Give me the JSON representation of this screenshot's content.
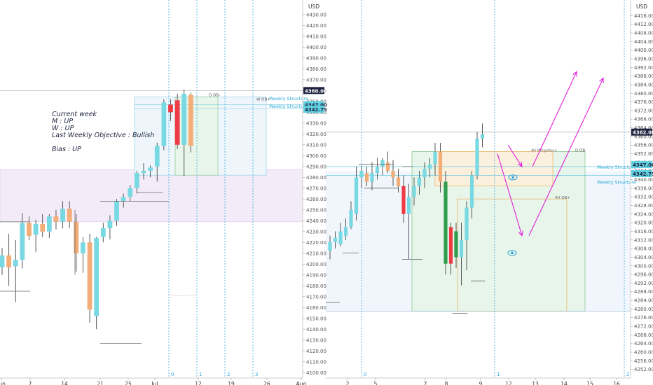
{
  "chart_data": [
    {
      "type": "candlestick",
      "timeframe": "daily",
      "y_unit": "USD",
      "ylim": [
        4095,
        4437
      ],
      "y_ticks": [
        4100,
        4110,
        4120,
        4130,
        4140,
        4150,
        4160,
        4170,
        4180,
        4190,
        4200,
        4210,
        4220,
        4230,
        4240,
        4250,
        4260,
        4270,
        4280,
        4290,
        4300,
        4310,
        4320,
        4330,
        4340,
        4350,
        4360,
        4370,
        4380,
        4390,
        4400,
        4410,
        4420,
        4430
      ],
      "x_tick_labels": [
        "Jun",
        "7",
        "14",
        "21",
        "25",
        "Jul",
        "12",
        "19",
        "26",
        "Aug"
      ],
      "price_labels": [
        "4360.00",
        "4347.00",
        "4342.75"
      ],
      "annotations": {
        "notes": [
          "Current week",
          "M : UP",
          "W : UP",
          "Last Weekly Objective : Bullish",
          "",
          "Bias : UP"
        ],
        "weekly_structure": [
          "Weekly Structure",
          "Weekly Structure"
        ],
        "d_ob": "D OB-",
        "w_ob": "W OB+"
      },
      "vline_labels": [
        "0",
        "1",
        "2",
        "3"
      ],
      "candles": [
        {
          "o": 4197,
          "h": 4215,
          "l": 4190,
          "c": 4208
        },
        {
          "o": 4208,
          "h": 4228,
          "l": 4180,
          "c": 4197
        },
        {
          "o": 4198,
          "h": 4222,
          "l": 4165,
          "c": 4204
        },
        {
          "o": 4204,
          "h": 4247,
          "l": 4196,
          "c": 4238
        },
        {
          "o": 4238,
          "h": 4244,
          "l": 4222,
          "c": 4226
        },
        {
          "o": 4227,
          "h": 4241,
          "l": 4211,
          "c": 4237
        },
        {
          "o": 4237,
          "h": 4246,
          "l": 4225,
          "c": 4230
        },
        {
          "o": 4230,
          "h": 4246,
          "l": 4224,
          "c": 4244
        },
        {
          "o": 4244,
          "h": 4250,
          "l": 4232,
          "c": 4239
        },
        {
          "o": 4239,
          "h": 4258,
          "l": 4233,
          "c": 4251
        },
        {
          "o": 4251,
          "h": 4258,
          "l": 4233,
          "c": 4239
        },
        {
          "o": 4239,
          "h": 4246,
          "l": 4193,
          "c": 4210
        },
        {
          "o": 4210,
          "h": 4225,
          "l": 4192,
          "c": 4220
        },
        {
          "o": 4220,
          "h": 4228,
          "l": 4146,
          "c": 4158
        },
        {
          "o": 4152,
          "h": 4225,
          "l": 4140,
          "c": 4224
        },
        {
          "o": 4225,
          "h": 4238,
          "l": 4220,
          "c": 4233
        },
        {
          "o": 4233,
          "h": 4245,
          "l": 4223,
          "c": 4240
        },
        {
          "o": 4240,
          "h": 4260,
          "l": 4235,
          "c": 4258
        },
        {
          "o": 4258,
          "h": 4265,
          "l": 4252,
          "c": 4262
        },
        {
          "o": 4262,
          "h": 4273,
          "l": 4258,
          "c": 4270
        },
        {
          "o": 4270,
          "h": 4286,
          "l": 4265,
          "c": 4284
        },
        {
          "o": 4284,
          "h": 4293,
          "l": 4278,
          "c": 4286
        },
        {
          "o": 4286,
          "h": 4291,
          "l": 4280,
          "c": 4289
        },
        {
          "o": 4290,
          "h": 4312,
          "l": 4276,
          "c": 4309
        },
        {
          "o": 4309,
          "h": 4352,
          "l": 4305,
          "c": 4349
        },
        {
          "o": 4347,
          "h": 4352,
          "l": 4332,
          "c": 4340
        },
        {
          "o": 4351,
          "h": 4357,
          "l": 4306,
          "c": 4310
        },
        {
          "o": 4310,
          "h": 4361,
          "l": 4281,
          "c": 4357
        },
        {
          "o": 4356,
          "h": 4358,
          "l": 4303,
          "c": 4309
        }
      ]
    },
    {
      "type": "candlestick",
      "timeframe": "4H",
      "y_unit": "USD",
      "ylim": [
        4248,
        4420
      ],
      "y_ticks": [
        4252,
        4256,
        4260,
        4264,
        4268,
        4272,
        4276,
        4280,
        4284,
        4288,
        4292,
        4296,
        4300,
        4304,
        4308,
        4312,
        4316,
        4320,
        4324,
        4328,
        4332,
        4336,
        4340,
        4344,
        4348,
        4352,
        4356,
        4360,
        4364,
        4368,
        4372,
        4376,
        4380,
        4384,
        4388,
        4392,
        4396,
        4400,
        4404,
        4408,
        4412,
        4416
      ],
      "x_tick_labels": [
        "2",
        "5",
        "7",
        "8",
        "9",
        "12",
        "13",
        "14",
        "15",
        "16"
      ],
      "price_labels": [
        "4362.00",
        "4347.00",
        "4342.75"
      ],
      "annotations": {
        "weekly_structure": [
          "Weekly Structure",
          "Weekly Structure"
        ],
        "ob_labels": [
          "4H Mitigation+",
          "D OB-",
          "4H OB+"
        ]
      },
      "vline_labels": [
        "0",
        "1",
        "2"
      ],
      "candles": [
        {
          "o": 4307,
          "h": 4314,
          "l": 4303,
          "c": 4311
        },
        {
          "o": 4311,
          "h": 4316,
          "l": 4308,
          "c": 4313
        },
        {
          "o": 4310,
          "h": 4320,
          "l": 4309,
          "c": 4316
        },
        {
          "o": 4314,
          "h": 4322,
          "l": 4312,
          "c": 4318
        },
        {
          "o": 4318,
          "h": 4330,
          "l": 4317,
          "c": 4326
        },
        {
          "o": 4324,
          "h": 4346,
          "l": 4321,
          "c": 4341
        },
        {
          "o": 4341,
          "h": 4346,
          "l": 4336,
          "c": 4344
        },
        {
          "o": 4343,
          "h": 4346,
          "l": 4337,
          "c": 4339
        },
        {
          "o": 4339,
          "h": 4348,
          "l": 4335,
          "c": 4343
        },
        {
          "o": 4343,
          "h": 4350,
          "l": 4340,
          "c": 4346
        },
        {
          "o": 4346,
          "h": 4350,
          "l": 4342,
          "c": 4349
        },
        {
          "o": 4348,
          "h": 4353,
          "l": 4343,
          "c": 4344
        },
        {
          "o": 4344,
          "h": 4349,
          "l": 4337,
          "c": 4341
        },
        {
          "o": 4341,
          "h": 4345,
          "l": 4334,
          "c": 4337
        },
        {
          "o": 4337,
          "h": 4342,
          "l": 4320,
          "c": 4324
        },
        {
          "o": 4324,
          "h": 4338,
          "l": 4303,
          "c": 4332
        },
        {
          "o": 4332,
          "h": 4341,
          "l": 4328,
          "c": 4337
        },
        {
          "o": 4337,
          "h": 4344,
          "l": 4333,
          "c": 4341
        },
        {
          "o": 4341,
          "h": 4348,
          "l": 4336,
          "c": 4345
        },
        {
          "o": 4345,
          "h": 4350,
          "l": 4341,
          "c": 4347
        },
        {
          "o": 4347,
          "h": 4357,
          "l": 4342,
          "c": 4353
        },
        {
          "o": 4353,
          "h": 4357,
          "l": 4334,
          "c": 4339
        },
        {
          "o": 4339,
          "h": 4344,
          "l": 4296,
          "c": 4301
        },
        {
          "o": 4301,
          "h": 4320,
          "l": 4296,
          "c": 4318
        },
        {
          "o": 4316,
          "h": 4320,
          "l": 4299,
          "c": 4304
        },
        {
          "o": 4304,
          "h": 4320,
          "l": 4291,
          "c": 4312
        },
        {
          "o": 4312,
          "h": 4330,
          "l": 4298,
          "c": 4327
        },
        {
          "o": 4327,
          "h": 4344,
          "l": 4322,
          "c": 4342
        },
        {
          "o": 4342,
          "h": 4362,
          "l": 4340,
          "c": 4359
        },
        {
          "o": 4359,
          "h": 4366,
          "l": 4355,
          "c": 4361
        }
      ]
    }
  ]
}
